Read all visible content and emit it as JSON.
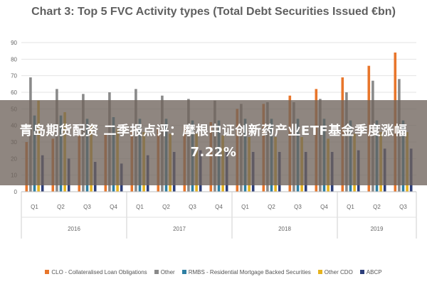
{
  "chart_data": {
    "type": "bar",
    "title": "Chart 3: Top 5 FVC Activity types (Total Debt Securities Issued €bn)",
    "xlabel": "",
    "ylabel": "",
    "ylim": [
      0,
      90
    ],
    "yticks": [
      "0",
      "10",
      "20",
      "30",
      "40",
      "50",
      "60",
      "70",
      "80",
      "90"
    ],
    "grid": true,
    "legend_position": "bottom",
    "categories": [
      "Q1",
      "Q2",
      "Q3",
      "Q4",
      "Q1",
      "Q2",
      "Q3",
      "Q4",
      "Q1",
      "Q2",
      "Q3",
      "Q4",
      "Q1",
      "Q2",
      "Q3"
    ],
    "years": [
      {
        "label": "2016",
        "count": 4
      },
      {
        "label": "2017",
        "count": 4
      },
      {
        "label": "2018",
        "count": 4
      },
      {
        "label": "2019",
        "count": 3
      }
    ],
    "series": [
      {
        "name": "CLO - Collateralised Loan Obligations",
        "color": "#e8762b",
        "values": [
          30,
          32,
          34,
          35,
          37,
          38,
          40,
          42,
          50,
          53,
          58,
          62,
          69,
          76,
          84
        ]
      },
      {
        "name": "Other",
        "color": "#8a8a8a",
        "values": [
          69,
          62,
          59,
          60,
          62,
          58,
          56,
          55,
          53,
          54,
          54,
          56,
          60,
          67,
          68
        ]
      },
      {
        "name": "RMBS - Residential Mortgage Backed Securities",
        "color": "#2e7fa3",
        "values": [
          46,
          46,
          44,
          45,
          44,
          44,
          43,
          43,
          44,
          44,
          44,
          44,
          43,
          43,
          43
        ]
      },
      {
        "name": "Other CDO",
        "color": "#e6b31e",
        "values": [
          55,
          48,
          40,
          38,
          36,
          35,
          35,
          34,
          33,
          33,
          33,
          32,
          35,
          36,
          36
        ]
      },
      {
        "name": "ABCP",
        "color": "#2c3e7a",
        "values": [
          22,
          20,
          18,
          17,
          22,
          24,
          25,
          24,
          24,
          24,
          24,
          24,
          25,
          26,
          26
        ]
      }
    ]
  },
  "banner": {
    "text": "青岛期货配资 二季报点评：摩根中证创新药产业ETF基金季度涨幅7.22%"
  }
}
